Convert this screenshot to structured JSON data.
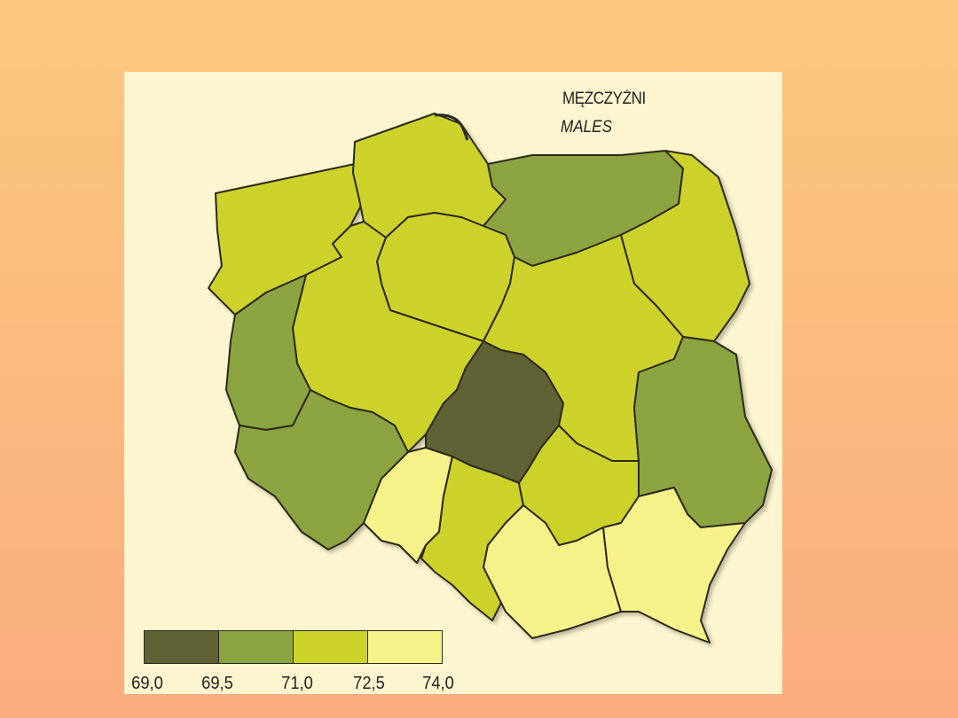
{
  "title": "MĘŻCZYŹNI",
  "subtitle": "MALES",
  "legend": {
    "breaks": [
      "69,0",
      "69,5",
      "71,0",
      "72,5",
      "74,0"
    ],
    "colors": [
      "#5f6234",
      "#8ba43f",
      "#cdd22b",
      "#f6f28a"
    ]
  },
  "map": {
    "region_classes": [
      2,
      2,
      1,
      2,
      2,
      2,
      1,
      2,
      0,
      1,
      3,
      2,
      2,
      1,
      3,
      3
    ]
  }
}
